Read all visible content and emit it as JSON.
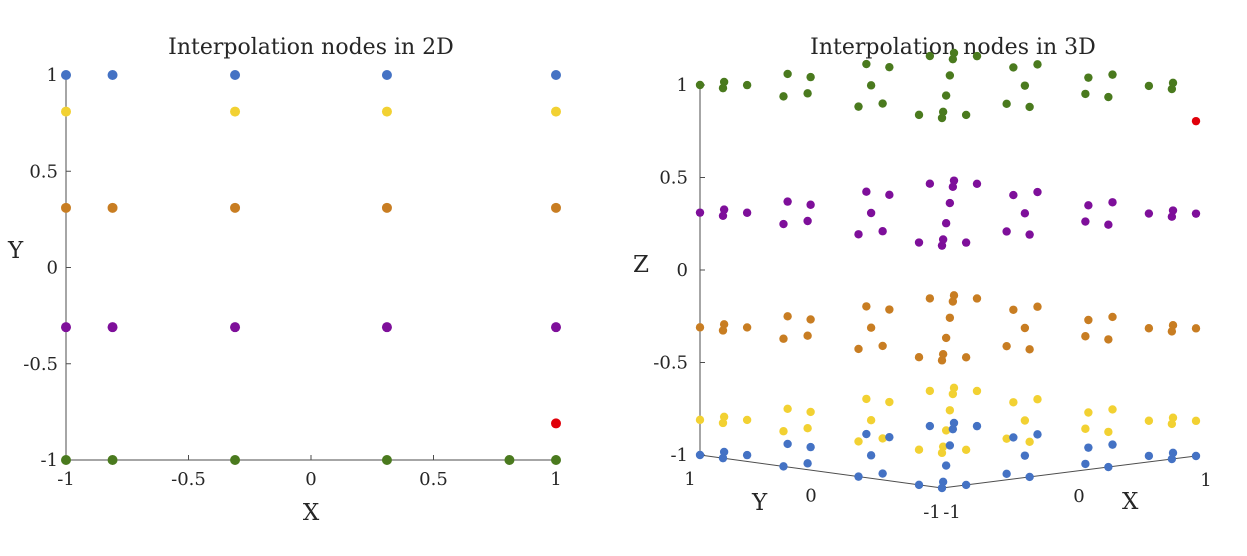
{
  "colors": {
    "blue": "#4472c4",
    "yellow": "#f2d132",
    "orange": "#c87d22",
    "purple": "#7e0f9a",
    "green": "#4a7a1e",
    "red": "#e0000a",
    "axis": "#4d4d4d"
  },
  "chart_data": [
    {
      "type": "scatter",
      "title": "Interpolation nodes in 2D",
      "xlabel": "X",
      "ylabel": "Y",
      "xlim": [
        -1,
        1
      ],
      "ylim": [
        -1,
        1
      ],
      "xticks": [
        "-1",
        "-0.5",
        "0",
        "0.5",
        "1"
      ],
      "yticks": [
        "-1",
        "-0.5",
        "0",
        "0.5",
        "1"
      ],
      "grid": false,
      "series": [
        {
          "color": "blue",
          "points": [
            [
              -1,
              1
            ],
            [
              -0.81,
              1
            ],
            [
              -0.31,
              1
            ],
            [
              0.31,
              1
            ],
            [
              1,
              1
            ]
          ]
        },
        {
          "color": "yellow",
          "points": [
            [
              -1,
              0.81
            ],
            [
              -0.31,
              0.81
            ],
            [
              0.31,
              0.81
            ],
            [
              1,
              0.81
            ]
          ]
        },
        {
          "color": "orange",
          "points": [
            [
              -1,
              0.31
            ],
            [
              -0.81,
              0.31
            ],
            [
              -0.31,
              0.31
            ],
            [
              0.31,
              0.31
            ],
            [
              1,
              0.31
            ]
          ]
        },
        {
          "color": "purple",
          "points": [
            [
              -1,
              -0.31
            ],
            [
              -0.81,
              -0.31
            ],
            [
              -0.31,
              -0.31
            ],
            [
              0.31,
              -0.31
            ],
            [
              1,
              -0.31
            ]
          ]
        },
        {
          "color": "red",
          "points": [
            [
              1,
              -0.81
            ]
          ]
        },
        {
          "color": "green",
          "points": [
            [
              -1,
              -1
            ],
            [
              -0.81,
              -1
            ],
            [
              -0.31,
              -1
            ],
            [
              0.31,
              -1
            ],
            [
              0.81,
              -1
            ],
            [
              1,
              -1
            ]
          ]
        }
      ]
    },
    {
      "type": "scatter",
      "title": "Interpolation nodes in 3D",
      "xlabel": "X",
      "ylabel": "Y",
      "zlabel": "Z",
      "xlim": [
        -1,
        1
      ],
      "ylim": [
        -1,
        1
      ],
      "zlim": [
        -1,
        1
      ],
      "xticks": [
        "-1",
        "0",
        "1"
      ],
      "yticks": [
        "-1",
        "0",
        "1"
      ],
      "zticks": [
        "-1",
        "-0.5",
        "0",
        "0.5",
        "1"
      ],
      "grid": false,
      "grid_values": [
        -1,
        -0.81,
        -0.31,
        0.31,
        0.81,
        1
      ],
      "layers": [
        {
          "color": "green",
          "z": 1,
          "note_excluded": [
            [
              1,
              -1
            ]
          ]
        },
        {
          "color": "red",
          "points": [
            [
              1,
              -1,
              0.81
            ]
          ]
        },
        {
          "color": "purple",
          "z": 0.31
        },
        {
          "color": "orange",
          "z": -0.31
        },
        {
          "color": "yellow",
          "z": -0.81
        },
        {
          "color": "blue",
          "z": -1
        }
      ]
    }
  ]
}
